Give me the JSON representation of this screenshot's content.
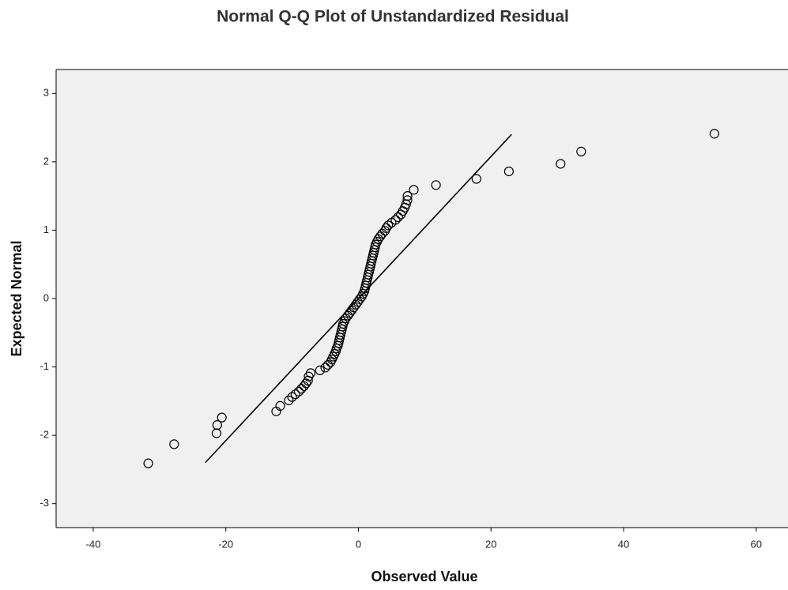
{
  "chart_data": {
    "type": "scatter",
    "title": "Normal Q-Q Plot of Unstandardized Residual",
    "x_label": "Observed Value",
    "y_label": "Expected Normal",
    "xlim": [
      -45.6,
      64.8
    ],
    "ylim": [
      -3.35,
      3.35
    ],
    "xticks": [
      -40,
      -20,
      0,
      20,
      40,
      60
    ],
    "yticks": [
      -3,
      -2,
      -1,
      0,
      1,
      2,
      3
    ],
    "background": "#f0f0f0",
    "point_color": "#000000",
    "line_color": "#000000",
    "reference_line": {
      "x": [
        -23.1,
        23.1
      ],
      "y": [
        -2.4,
        2.4
      ]
    },
    "x": [
      -31.7,
      -27.8,
      -21.4,
      -21.3,
      -20.6,
      -12.4,
      -11.8,
      -10.5,
      -10,
      -9.5,
      -9,
      -8.6,
      -8.2,
      -7.9,
      -7.6,
      -7.5,
      -7.2,
      -5.8,
      -5,
      -4.6,
      -4.2,
      -4,
      -3.8,
      -3.6,
      -3.4,
      -3.3,
      -3.1,
      -3,
      -2.9,
      -2.8,
      -2.7,
      -2.6,
      -2.5,
      -2.4,
      -2.3,
      -2.1,
      -1.9,
      -1.6,
      -1.3,
      -1,
      -0.7,
      -0.4,
      -0.1,
      0.2,
      0.5,
      0.7,
      0.9,
      1,
      1.1,
      1.2,
      1.3,
      1.4,
      1.5,
      1.6,
      1.7,
      1.8,
      1.9,
      2,
      2.1,
      2.2,
      2.3,
      2.4,
      2.5,
      2.6,
      2.8,
      3,
      3.3,
      3.6,
      4,
      4.2,
      4.5,
      5,
      5.6,
      6,
      6.4,
      6.7,
      7,
      7.2,
      7.4,
      7.4,
      8.35,
      11.7,
      17.8,
      22.7,
      30.5,
      33.6,
      53.7
    ],
    "y": [
      -2.41,
      -2.13,
      -1.97,
      -1.85,
      -1.74,
      -1.65,
      -1.57,
      -1.49,
      -1.44,
      -1.4,
      -1.36,
      -1.32,
      -1.28,
      -1.24,
      -1.2,
      -1.14,
      -1.09,
      -1.05,
      -1.01,
      -0.97,
      -0.93,
      -0.89,
      -0.85,
      -0.81,
      -0.77,
      -0.73,
      -0.69,
      -0.65,
      -0.61,
      -0.57,
      -0.53,
      -0.49,
      -0.45,
      -0.41,
      -0.37,
      -0.33,
      -0.29,
      -0.25,
      -0.21,
      -0.17,
      -0.13,
      -0.09,
      -0.05,
      -0.01,
      0.03,
      0.07,
      0.11,
      0.15,
      0.19,
      0.23,
      0.27,
      0.31,
      0.35,
      0.39,
      0.43,
      0.47,
      0.51,
      0.55,
      0.59,
      0.63,
      0.67,
      0.71,
      0.75,
      0.79,
      0.83,
      0.87,
      0.91,
      0.95,
      0.99,
      1.03,
      1.07,
      1.11,
      1.15,
      1.19,
      1.23,
      1.28,
      1.33,
      1.38,
      1.44,
      1.5,
      1.59,
      1.66,
      1.75,
      1.86,
      1.97,
      2.15,
      2.41
    ]
  }
}
